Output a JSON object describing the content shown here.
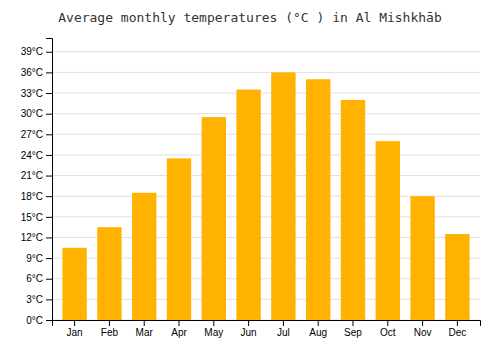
{
  "chart_data": {
    "type": "bar",
    "title": "Average monthly temperatures (°C ) in Al Mishkhāb",
    "categories": [
      "Jan",
      "Feb",
      "Mar",
      "Apr",
      "May",
      "Jun",
      "Jul",
      "Aug",
      "Sep",
      "Oct",
      "Nov",
      "Dec"
    ],
    "values": [
      10.5,
      13.5,
      18.5,
      23.5,
      29.5,
      33.5,
      36.0,
      35.0,
      32.0,
      26.0,
      18.0,
      12.5
    ],
    "color": "#FFB300",
    "ylim": [
      0,
      41
    ],
    "yticks": [
      {
        "value": 0,
        "label": "0°C"
      },
      {
        "value": 3,
        "label": "3°C"
      },
      {
        "value": 6,
        "label": "6°C"
      },
      {
        "value": 9,
        "label": "9°C"
      },
      {
        "value": 12,
        "label": "12°C"
      },
      {
        "value": 15,
        "label": "15°C"
      },
      {
        "value": 18,
        "label": "18°C"
      },
      {
        "value": 21,
        "label": "21°C"
      },
      {
        "value": 24,
        "label": "24°C"
      },
      {
        "value": 27,
        "label": "27°C"
      },
      {
        "value": 30,
        "label": "30°C"
      },
      {
        "value": 33,
        "label": "33°C"
      },
      {
        "value": 36,
        "label": "36°C"
      },
      {
        "value": 39,
        "label": "39°C"
      }
    ],
    "grid": true
  }
}
